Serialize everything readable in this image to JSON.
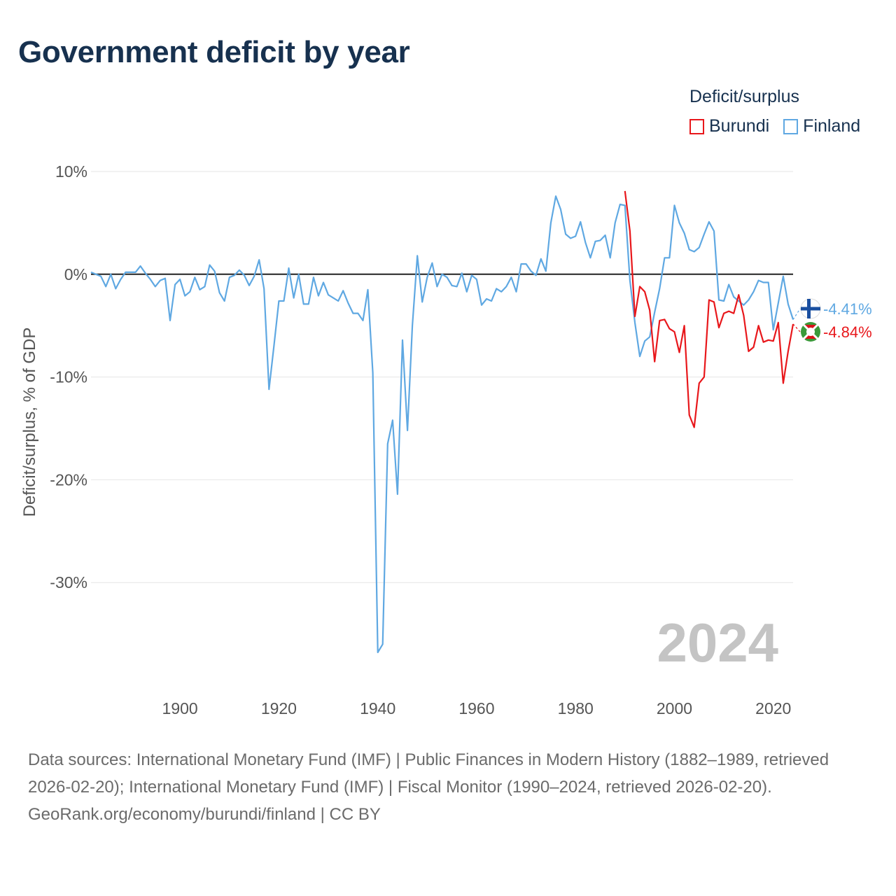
{
  "chart_data": {
    "type": "line",
    "title": "Government deficit by year",
    "ylabel": "Deficit/surplus, % of GDP",
    "xlabel": "",
    "legend_title": "Deficit/surplus",
    "legend_position": "top-right",
    "xlim": [
      1882,
      2024
    ],
    "ylim": [
      -38,
      10
    ],
    "x_ticks": [
      1900,
      1920,
      1940,
      1960,
      1980,
      2000,
      2020
    ],
    "x_tick_labels": [
      "1900",
      "1920",
      "1940",
      "1960",
      "1980",
      "2000",
      "2020"
    ],
    "y_ticks": [
      10,
      0,
      -10,
      -20,
      -30
    ],
    "y_tick_labels": [
      "10%",
      "0%",
      "-10%",
      "-20%",
      "-30%"
    ],
    "year_overlay": "2024",
    "series": [
      {
        "name": "Burundi",
        "color": "#e8171b",
        "end_label": "-4.84%",
        "start_year": 1990,
        "values": [
          8.1,
          4.2,
          -4.1,
          -1.2,
          -1.7,
          -3.5,
          -8.5,
          -4.5,
          -4.4,
          -5.3,
          -5.6,
          -7.6,
          -5.0,
          -13.7,
          -14.9,
          -10.6,
          -10.0,
          -2.5,
          -2.7,
          -5.2,
          -3.8,
          -3.6,
          -3.8,
          -2.0,
          -4.0,
          -7.5,
          -7.1,
          -5.0,
          -6.6,
          -6.4,
          -6.5,
          -4.7,
          -10.6,
          -7.5,
          -4.84
        ]
      },
      {
        "name": "Finland",
        "color": "#5fa8e2",
        "end_label": "-4.41%",
        "start_year": 1882,
        "values": [
          0.2,
          0.0,
          -0.2,
          -1.2,
          0.0,
          -1.4,
          -0.5,
          0.2,
          0.2,
          0.2,
          0.8,
          0.1,
          -0.5,
          -1.2,
          -0.6,
          -0.4,
          -4.5,
          -1.0,
          -0.5,
          -2.1,
          -1.7,
          -0.3,
          -1.5,
          -1.2,
          0.9,
          0.3,
          -1.8,
          -2.6,
          -0.3,
          -0.1,
          0.4,
          -0.1,
          -1.1,
          -0.2,
          1.4,
          -1.4,
          -11.2,
          -7.0,
          -2.6,
          -2.6,
          0.6,
          -2.3,
          0.0,
          -2.9,
          -2.9,
          -0.3,
          -2.1,
          -0.8,
          -2.0,
          -2.3,
          -2.6,
          -1.6,
          -2.8,
          -3.8,
          -3.8,
          -4.5,
          -1.5,
          -9.6,
          -36.8,
          -36.0,
          -16.5,
          -14.2,
          -21.4,
          -6.4,
          -15.2,
          -5.0,
          1.8,
          -2.7,
          -0.3,
          1.1,
          -1.2,
          0.0,
          -0.3,
          -1.1,
          -1.2,
          0.1,
          -1.7,
          -0.1,
          -0.5,
          -3.0,
          -2.4,
          -2.6,
          -1.4,
          -1.7,
          -1.2,
          -0.3,
          -1.7,
          1.0,
          1.0,
          0.3,
          -0.1,
          1.5,
          0.3,
          5.0,
          7.6,
          6.3,
          3.9,
          3.5,
          3.7,
          5.1,
          3.1,
          1.6,
          3.2,
          3.3,
          3.8,
          1.6,
          5.0,
          6.8,
          6.7,
          -0.6,
          -4.7,
          -8.0,
          -6.5,
          -6.1,
          -3.7,
          -1.4,
          1.6,
          1.6,
          6.7,
          5.0,
          4.0,
          2.4,
          2.2,
          2.6,
          3.9,
          5.1,
          4.2,
          -2.5,
          -2.6,
          -1.0,
          -2.2,
          -2.6,
          -3.0,
          -2.5,
          -1.7,
          -0.6,
          -0.8,
          -0.8,
          -5.4,
          -2.8,
          -0.2,
          -2.9,
          -4.41
        ]
      }
    ]
  },
  "footer": {
    "sources": "Data sources: International Monetary Fund (IMF) | Public Finances in Modern History (1882–1989, retrieved 2026-02-20); International Monetary Fund (IMF) | Fiscal Monitor (1990–2024, retrieved 2026-02-20).",
    "credit": "GeoRank.org/economy/burundi/finland | CC BY"
  }
}
